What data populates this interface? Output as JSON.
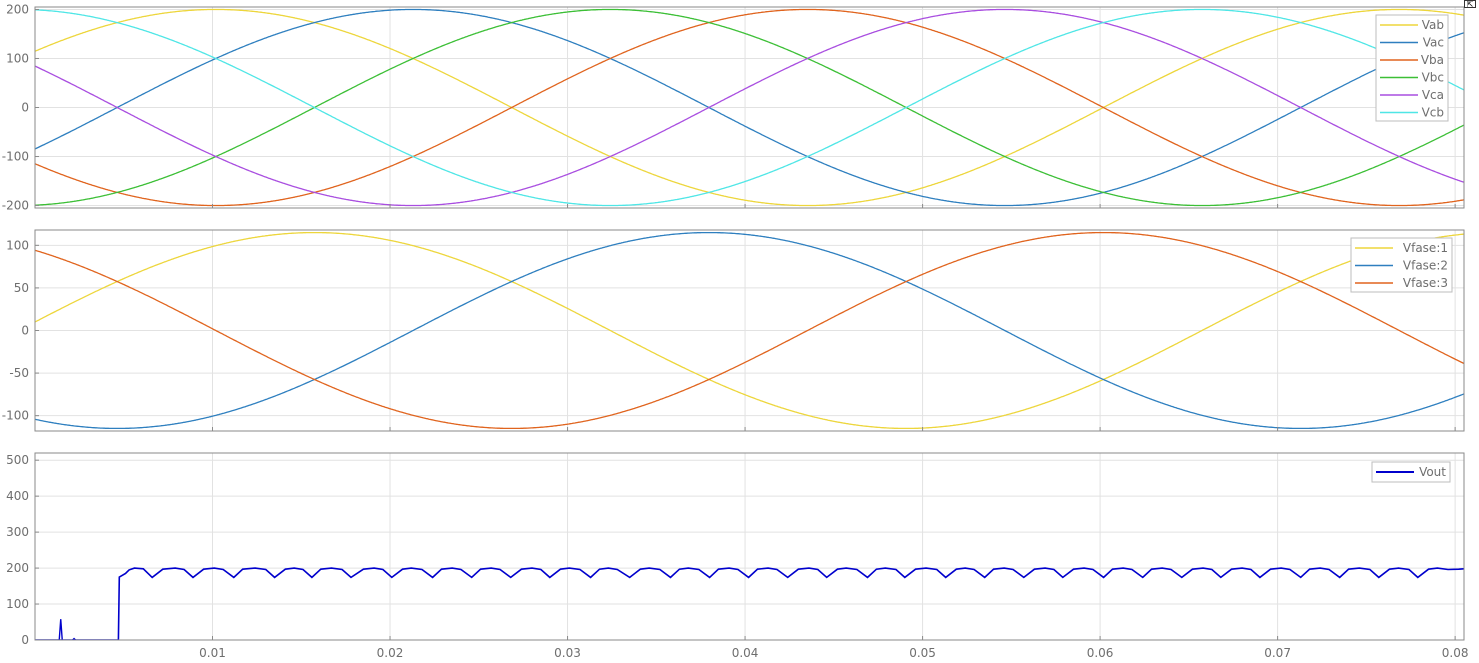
{
  "colors": {
    "Vab": "#edd63c",
    "Vac": "#2e7fbf",
    "Vba": "#e0641e",
    "Vbc": "#3cbf36",
    "Vca": "#a94ee0",
    "Vcb": "#4fe6e6",
    "Vfase1": "#edd63c",
    "Vfase2": "#2e7fbf",
    "Vfase3": "#e0641e",
    "Vout": "#0000cc"
  },
  "corner_button": {
    "icon": "restore-icon",
    "glyph": "⇱"
  },
  "chart_data": [
    {
      "type": "line",
      "title": "",
      "xlim": [
        0,
        0.0805
      ],
      "ylim": [
        -205,
        205
      ],
      "yticks": [
        -200,
        -100,
        0,
        100,
        200
      ],
      "ytick_labels": [
        "-200",
        "-100",
        "0",
        "100",
        "200"
      ],
      "xticks": [
        0.01,
        0.02,
        0.03,
        0.04,
        0.05,
        0.06,
        0.07,
        0.08
      ],
      "grid": true,
      "legend_position": "top-right",
      "waveform": {
        "amplitude": 200,
        "frequency_hz": 15
      },
      "series": [
        {
          "name": "Vab",
          "phase_deg": 35
        },
        {
          "name": "Vac",
          "phase_deg": -25
        },
        {
          "name": "Vba",
          "phase_deg": -145
        },
        {
          "name": "Vbc",
          "phase_deg": -85
        },
        {
          "name": "Vca",
          "phase_deg": 155
        },
        {
          "name": "Vcb",
          "phase_deg": 95
        }
      ]
    },
    {
      "type": "line",
      "title": "",
      "xlim": [
        0,
        0.0805
      ],
      "ylim": [
        -118,
        118
      ],
      "yticks": [
        -100,
        -50,
        0,
        50,
        100
      ],
      "ytick_labels": [
        "-100",
        "-50",
        "0",
        "50",
        "100"
      ],
      "xticks": [
        0.01,
        0.02,
        0.03,
        0.04,
        0.05,
        0.06,
        0.07,
        0.08
      ],
      "grid": true,
      "legend_position": "top-right",
      "waveform": {
        "amplitude": 115,
        "frequency_hz": 15
      },
      "series": [
        {
          "name": "Vfase:1",
          "phase_deg": 5
        },
        {
          "name": "Vfase:2",
          "phase_deg": -115
        },
        {
          "name": "Vfase:3",
          "phase_deg": 125
        }
      ]
    },
    {
      "type": "line",
      "title": "",
      "xlim": [
        0,
        0.0805
      ],
      "ylim": [
        0,
        520
      ],
      "yticks": [
        0,
        100,
        200,
        300,
        400,
        500
      ],
      "ytick_labels": [
        "0",
        "100",
        "200",
        "300",
        "400",
        "500"
      ],
      "xticks": [
        0.01,
        0.02,
        0.03,
        0.04,
        0.05,
        0.06,
        0.07,
        0.08
      ],
      "xtick_labels": [
        "0.01",
        "0.02",
        "0.03",
        "0.04",
        "0.05",
        "0.06",
        "0.07",
        "0.08"
      ],
      "grid": true,
      "legend_position": "top-right",
      "series": [
        {
          "name": "Vout",
          "x": [
            0,
            0.0047,
            0.00475,
            0.0051,
            0.0053,
            0.0056,
            0.0061,
            0.0066,
            0.0072,
            0.0079,
            0.0084,
            0.0089,
            0.0095,
            0.0101,
            0.0106,
            0.0112,
            0.0117,
            0.0124,
            0.013,
            0.0135,
            0.0141,
            0.0146,
            0.0151,
            0.0156,
            0.0161,
            0.0167,
            0.0173,
            0.0178,
            0.0185,
            0.0191,
            0.0196,
            0.0201,
            0.0207,
            0.0212,
            0.0218,
            0.0224,
            0.0229,
            0.0235,
            0.024,
            0.0246,
            0.0251,
            0.0257,
            0.0262,
            0.0268,
            0.0274,
            0.028,
            0.0285,
            0.029,
            0.0296,
            0.0301,
            0.0307,
            0.0313,
            0.0318,
            0.0323,
            0.0328,
            0.0335,
            0.0341,
            0.0346,
            0.0352,
            0.0358,
            0.0363,
            0.0368,
            0.0374,
            0.038,
            0.0385,
            0.0391,
            0.0396,
            0.0402,
            0.0407,
            0.0413,
            0.0418,
            0.0424,
            0.043,
            0.0436,
            0.0441,
            0.0446,
            0.0452,
            0.0457,
            0.0463,
            0.0469,
            0.0474,
            0.0479,
            0.0485,
            0.049,
            0.0496,
            0.0502,
            0.0508,
            0.0513,
            0.0519,
            0.0524,
            0.0529,
            0.0535,
            0.054,
            0.0546,
            0.0551,
            0.0557,
            0.0563,
            0.0569,
            0.0574,
            0.0579,
            0.0585,
            0.0591,
            0.0596,
            0.0602,
            0.0607,
            0.0613,
            0.0618,
            0.0624,
            0.0629,
            0.0635,
            0.064,
            0.0646,
            0.0652,
            0.0658,
            0.0663,
            0.0668,
            0.0674,
            0.068,
            0.0685,
            0.069,
            0.0696,
            0.0702,
            0.0707,
            0.0713,
            0.0718,
            0.0724,
            0.0729,
            0.0735,
            0.074,
            0.0746,
            0.0752,
            0.0757,
            0.0763,
            0.0768,
            0.0774,
            0.0779,
            0.0785,
            0.079,
            0.0796,
            0.0802,
            0.0805
          ],
          "y": [
            0,
            0,
            175,
            185,
            195,
            200,
            198,
            174,
            197,
            200,
            196,
            174,
            197,
            200,
            196,
            174,
            197,
            200,
            196,
            174,
            197,
            200,
            196,
            174,
            197,
            200,
            196,
            174,
            197,
            200,
            196,
            174,
            197,
            200,
            196,
            174,
            197,
            200,
            196,
            174,
            197,
            200,
            196,
            174,
            197,
            200,
            196,
            174,
            197,
            200,
            196,
            174,
            197,
            200,
            196,
            174,
            197,
            200,
            196,
            174,
            197,
            200,
            196,
            174,
            197,
            200,
            196,
            174,
            197,
            200,
            196,
            174,
            197,
            200,
            196,
            174,
            197,
            200,
            196,
            174,
            197,
            200,
            196,
            174,
            197,
            200,
            196,
            174,
            197,
            200,
            196,
            174,
            197,
            200,
            196,
            174,
            197,
            200,
            196,
            174,
            197,
            200,
            196,
            174,
            197,
            200,
            196,
            174,
            197,
            200,
            196,
            174,
            197,
            200,
            196,
            174,
            197,
            200,
            196,
            174,
            197,
            200,
            196,
            174,
            197,
            200,
            196,
            174,
            197,
            200,
            196,
            174,
            197,
            200,
            196,
            174,
            197,
            200,
            196,
            197,
            198
          ],
          "spikes": [
            {
              "x": 0.00145,
              "y": 58
            },
            {
              "x": 0.0022,
              "y": 4
            }
          ]
        }
      ]
    }
  ]
}
